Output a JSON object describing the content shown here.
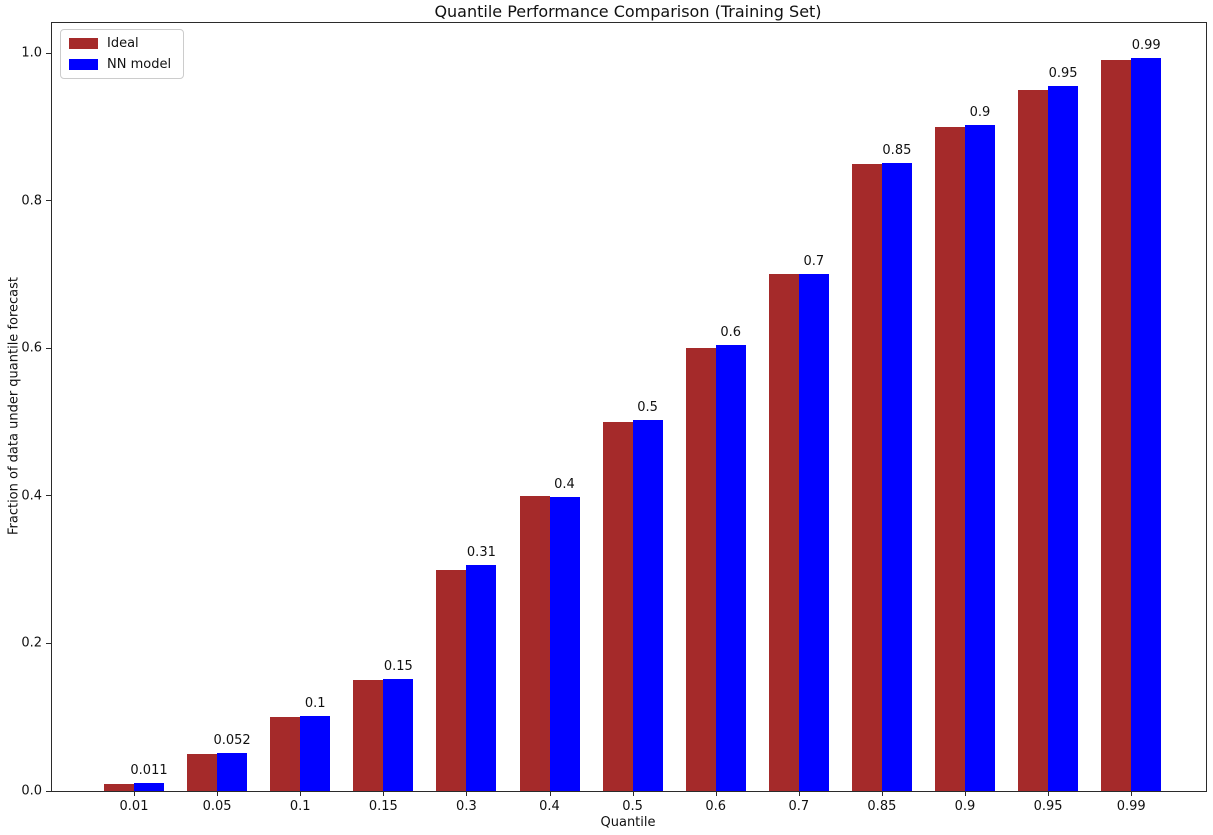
{
  "chart_data": {
    "type": "bar",
    "title": "Quantile Performance Comparison (Training Set)",
    "xlabel": "Quantile",
    "ylabel": "Fraction of data under quantile forecast",
    "categories": [
      "0.01",
      "0.05",
      "0.1",
      "0.15",
      "0.3",
      "0.4",
      "0.5",
      "0.6",
      "0.7",
      "0.85",
      "0.9",
      "0.95",
      "0.99"
    ],
    "series": [
      {
        "name": "Ideal",
        "color": "#A52A2A",
        "values": [
          0.01,
          0.05,
          0.1,
          0.15,
          0.3,
          0.4,
          0.5,
          0.6,
          0.7,
          0.85,
          0.9,
          0.95,
          0.99
        ]
      },
      {
        "name": "NN model",
        "color": "#0000FF",
        "values": [
          0.011,
          0.052,
          0.102,
          0.152,
          0.306,
          0.398,
          0.503,
          0.604,
          0.701,
          0.851,
          0.903,
          0.955,
          0.993
        ],
        "bar_labels": [
          "0.011",
          "0.052",
          "0.1",
          "0.15",
          "0.31",
          "0.4",
          "0.5",
          "0.6",
          "0.7",
          "0.85",
          "0.9",
          "0.95",
          "0.99"
        ]
      }
    ],
    "yticks": [
      "0.0",
      "0.2",
      "0.4",
      "0.6",
      "0.8",
      "1.0"
    ],
    "ylim": [
      0,
      1.04
    ],
    "grid": false,
    "legend_position": "upper-left"
  }
}
